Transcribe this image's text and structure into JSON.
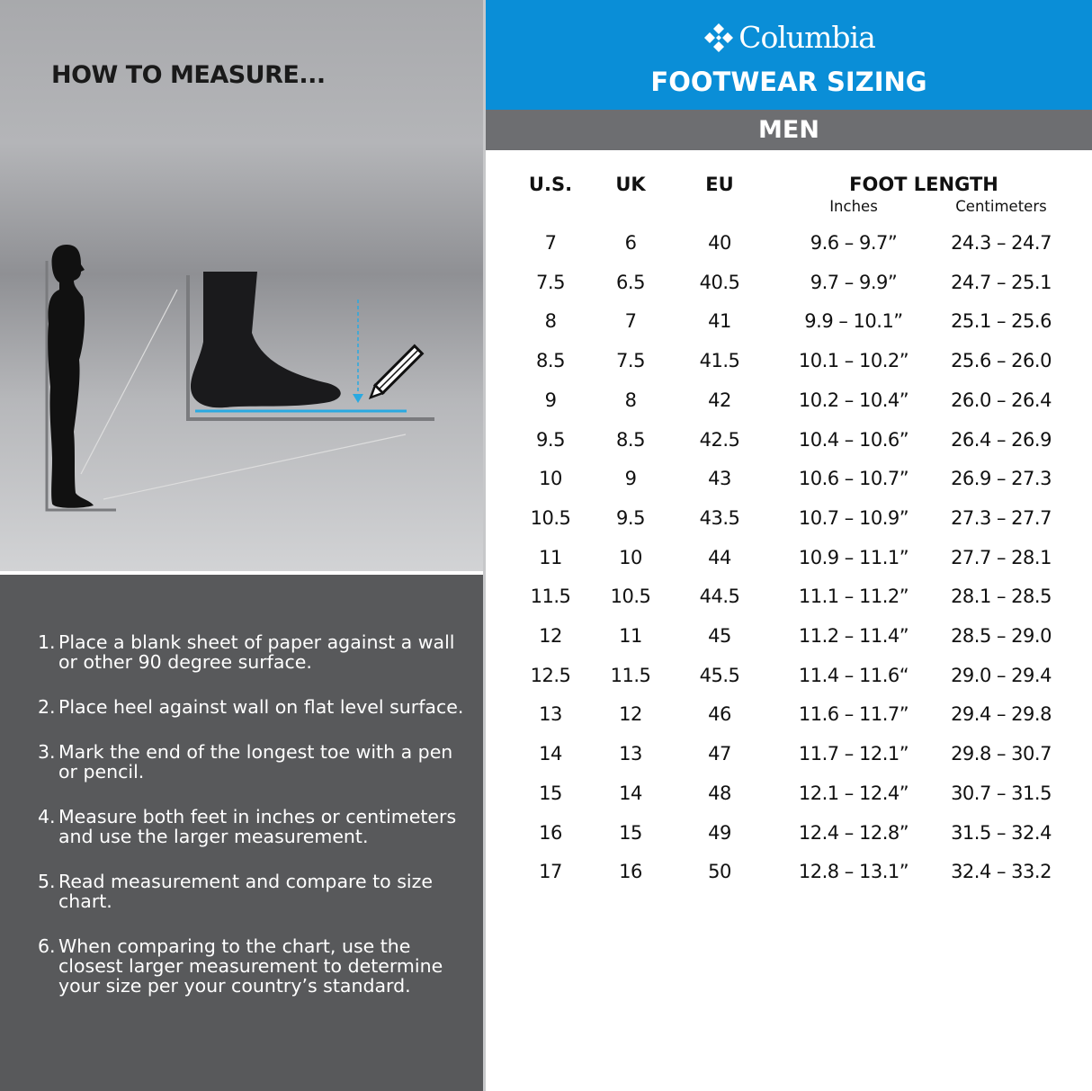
{
  "left": {
    "heading": "HOW TO MEASURE...",
    "steps": [
      {
        "n": "1.",
        "text": "Place a blank sheet of paper against a wall or other 90 degree surface."
      },
      {
        "n": "2.",
        "text": "Place heel against wall on flat level surface."
      },
      {
        "n": "3.",
        "text": "Mark the end of the longest toe with a pen or pencil."
      },
      {
        "n": "4.",
        "text": "Measure both feet in inches or centimeters and use the larger measurement."
      },
      {
        "n": "5.",
        "text": "Read measurement and compare to size chart."
      },
      {
        "n": "6.",
        "text": "When comparing to the chart, use the closest larger measurement to determine your size per your country’s standard."
      }
    ]
  },
  "header": {
    "brand": "Columbia",
    "title": "FOOTWEAR SIZING",
    "section": "MEN",
    "brand_color": "#0a8ed7"
  },
  "table": {
    "columns": [
      "U.S.",
      "UK",
      "EU",
      "FOOT LENGTH"
    ],
    "subcolumns": [
      "Inches",
      "Centimeters"
    ],
    "rows": [
      [
        "7",
        "6",
        "40",
        "9.6 – 9.7”",
        "24.3 – 24.7"
      ],
      [
        "7.5",
        "6.5",
        "40.5",
        "9.7 – 9.9”",
        "24.7 – 25.1"
      ],
      [
        "8",
        "7",
        "41",
        "9.9 – 10.1”",
        "25.1 – 25.6"
      ],
      [
        "8.5",
        "7.5",
        "41.5",
        "10.1 – 10.2”",
        "25.6 – 26.0"
      ],
      [
        "9",
        "8",
        "42",
        "10.2 – 10.4”",
        "26.0 – 26.4"
      ],
      [
        "9.5",
        "8.5",
        "42.5",
        "10.4 – 10.6”",
        "26.4 – 26.9"
      ],
      [
        "10",
        "9",
        "43",
        "10.6 – 10.7”",
        "26.9 – 27.3"
      ],
      [
        "10.5",
        "9.5",
        "43.5",
        "10.7 – 10.9”",
        "27.3 – 27.7"
      ],
      [
        "11",
        "10",
        "44",
        "10.9 – 11.1”",
        "27.7 – 28.1"
      ],
      [
        "11.5",
        "10.5",
        "44.5",
        "11.1 – 11.2”",
        "28.1 – 28.5"
      ],
      [
        "12",
        "11",
        "45",
        "11.2 – 11.4”",
        "28.5 – 29.0"
      ],
      [
        "12.5",
        "11.5",
        "45.5",
        "11.4 – 11.6“",
        "29.0 – 29.4"
      ],
      [
        "13",
        "12",
        "46",
        "11.6 – 11.7”",
        "29.4 – 29.8"
      ],
      [
        "14",
        "13",
        "47",
        "11.7 – 12.1”",
        "29.8 – 30.7"
      ],
      [
        "15",
        "14",
        "48",
        "12.1 – 12.4”",
        "30.7 – 31.5"
      ],
      [
        "16",
        "15",
        "49",
        "12.4 – 12.8”",
        "31.5 – 32.4"
      ],
      [
        "17",
        "16",
        "50",
        "12.8 – 13.1”",
        "32.4 – 33.2"
      ]
    ]
  }
}
